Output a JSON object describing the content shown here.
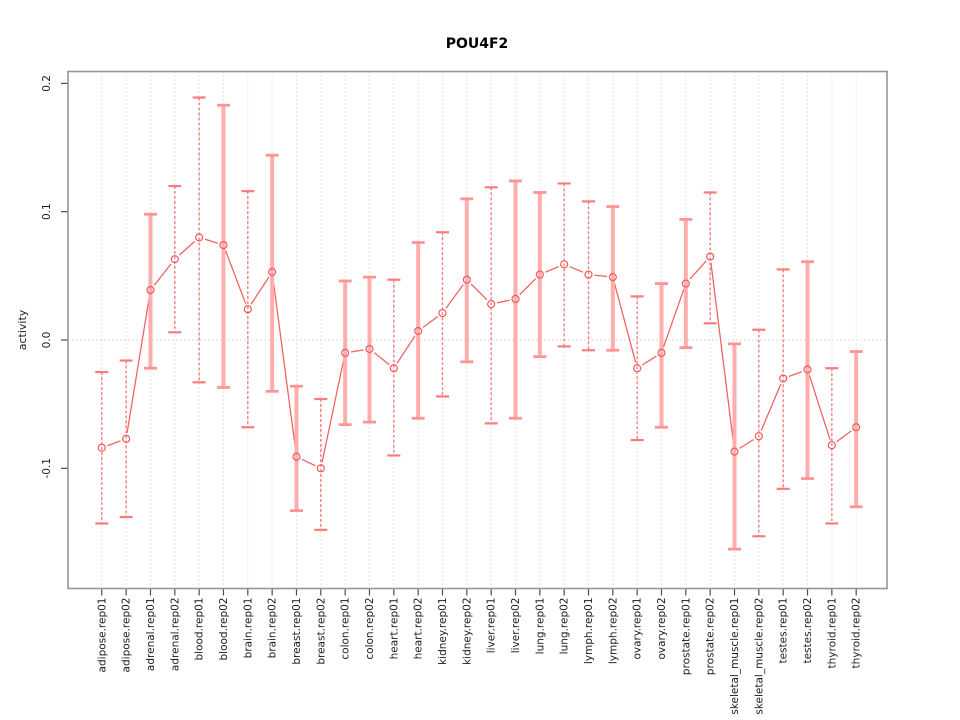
{
  "chart_data": {
    "type": "line",
    "subtype": "points-with-error-bars",
    "title": "POU4F2",
    "xlabel": "",
    "ylabel": "activity",
    "legend": "none",
    "grid": "vertical dotted gridlines at every category; dotted horizontal line at y=0",
    "ylim": [
      -0.205,
      0.21
    ],
    "yticks": {
      "values": [
        0.2,
        0.1,
        0.0,
        -0.1
      ],
      "labels": [
        "0.2",
        "0.1",
        "0.0",
        "-0.1"
      ]
    },
    "categories": [
      "adipose.rep01",
      "adipose.rep02",
      "adrenal.rep01",
      "adrenal.rep02",
      "blood.rep01",
      "blood.rep02",
      "brain.rep01",
      "brain.rep02",
      "breast.rep01",
      "breast.rep02",
      "colon.rep01",
      "colon.rep02",
      "heart.rep01",
      "heart.rep02",
      "kidney.rep01",
      "kidney.rep02",
      "liver.rep01",
      "liver.rep02",
      "lung.rep01",
      "lung.rep02",
      "lymph.rep01",
      "lymph.rep02",
      "ovary.rep01",
      "ovary.rep02",
      "prostate.rep01",
      "prostate.rep02",
      "skeletal_muscle.rep01",
      "skeletal_muscle.rep02",
      "testes.rep01",
      "testes.rep02",
      "thyroid.rep01",
      "thyroid.rep02"
    ],
    "values": [
      -0.084,
      -0.077,
      0.039,
      0.063,
      0.08,
      0.074,
      0.024,
      0.053,
      -0.091,
      -0.1,
      -0.01,
      -0.007,
      -0.022,
      0.007,
      0.021,
      0.047,
      0.028,
      0.032,
      0.051,
      0.059,
      0.051,
      0.049,
      -0.022,
      -0.01,
      0.044,
      0.065,
      -0.087,
      -0.075,
      -0.03,
      -0.023,
      -0.082,
      -0.068
    ],
    "error_low": [
      -0.143,
      -0.138,
      -0.022,
      0.006,
      -0.033,
      -0.037,
      -0.068,
      -0.04,
      -0.133,
      -0.148,
      -0.066,
      -0.064,
      -0.09,
      -0.061,
      -0.044,
      -0.017,
      -0.065,
      -0.061,
      -0.013,
      -0.005,
      -0.008,
      -0.008,
      -0.078,
      -0.068,
      -0.006,
      0.013,
      -0.163,
      -0.153,
      -0.116,
      -0.108,
      -0.143,
      -0.13
    ],
    "error_high": [
      -0.025,
      -0.016,
      0.098,
      0.12,
      0.189,
      0.183,
      0.116,
      0.144,
      -0.036,
      -0.046,
      0.046,
      0.049,
      0.047,
      0.076,
      0.084,
      0.11,
      0.119,
      0.124,
      0.115,
      0.122,
      0.108,
      0.104,
      0.034,
      0.044,
      0.094,
      0.115,
      -0.003,
      0.008,
      0.055,
      0.061,
      -0.022,
      -0.009
    ],
    "bar_style": [
      "dashed",
      "dashed",
      "solid",
      "dashed",
      "dashed",
      "solid",
      "dashed",
      "solid",
      "solid",
      "dashed",
      "solid",
      "solid",
      "dashed",
      "solid",
      "dashed",
      "solid",
      "dashed",
      "solid",
      "solid",
      "dashed",
      "dashed",
      "solid",
      "dashed",
      "solid",
      "solid",
      "dashed",
      "solid",
      "dashed",
      "dashed",
      "solid",
      "dashed",
      "solid"
    ],
    "colors": {
      "line": "#f25f5f",
      "point_stroke": "#ef5a5a",
      "point_fill": "#ffffff",
      "bar_solid": "#ffadad",
      "bar_dashed": "#f97c7c",
      "cap_solid": "#ff9494",
      "cap_dashed": "#f97c7c",
      "gridline": "#dcdcdc",
      "zero_line": "#d0d0d0",
      "axis_box": "#969696",
      "tick": "#4d4d4d",
      "text": "#1a1a1a",
      "background": "#ffffff"
    }
  }
}
